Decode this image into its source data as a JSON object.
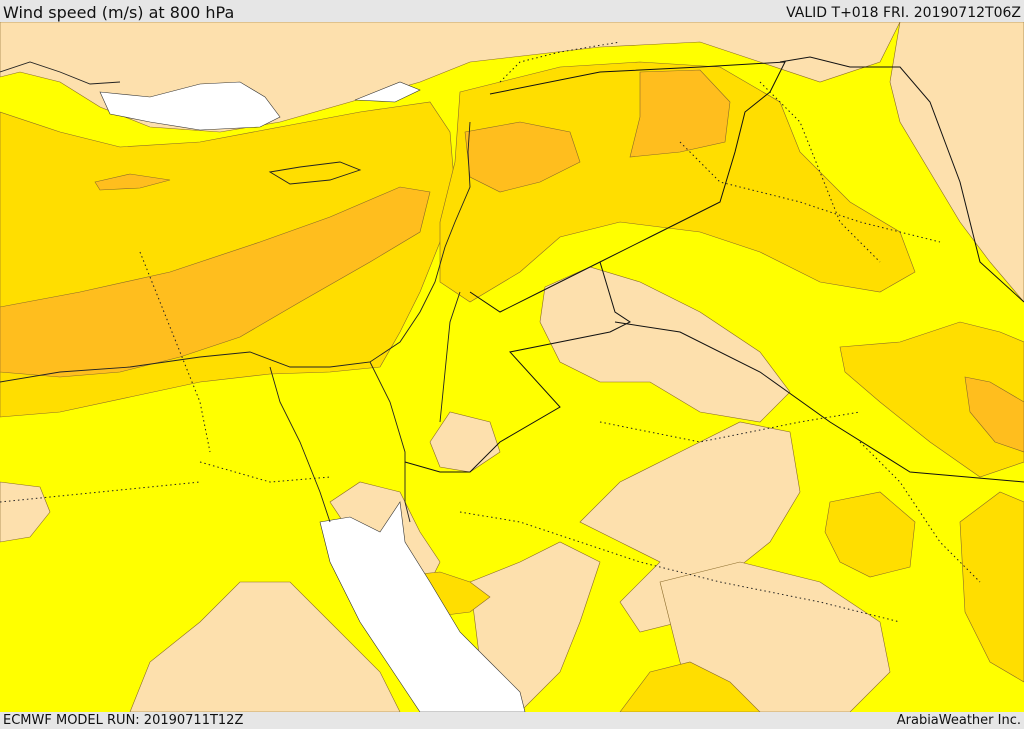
{
  "header": {
    "title": "Wind speed (m/s) at 800 hPa",
    "valid_time": "VALID T+018 FRI. 20190712T06Z"
  },
  "footer": {
    "model_run": "ECMWF MODEL RUN: 20190711T12Z",
    "credit": "ArabiaWeather Inc."
  },
  "colors": {
    "band_light": "#fde0ad",
    "band_yellow": "#ffff00",
    "band_gold": "#ffde00",
    "band_orange": "#ffbe1e",
    "sea_unfilled": "#ffffff",
    "frame_background": "#e6e6e6"
  }
}
